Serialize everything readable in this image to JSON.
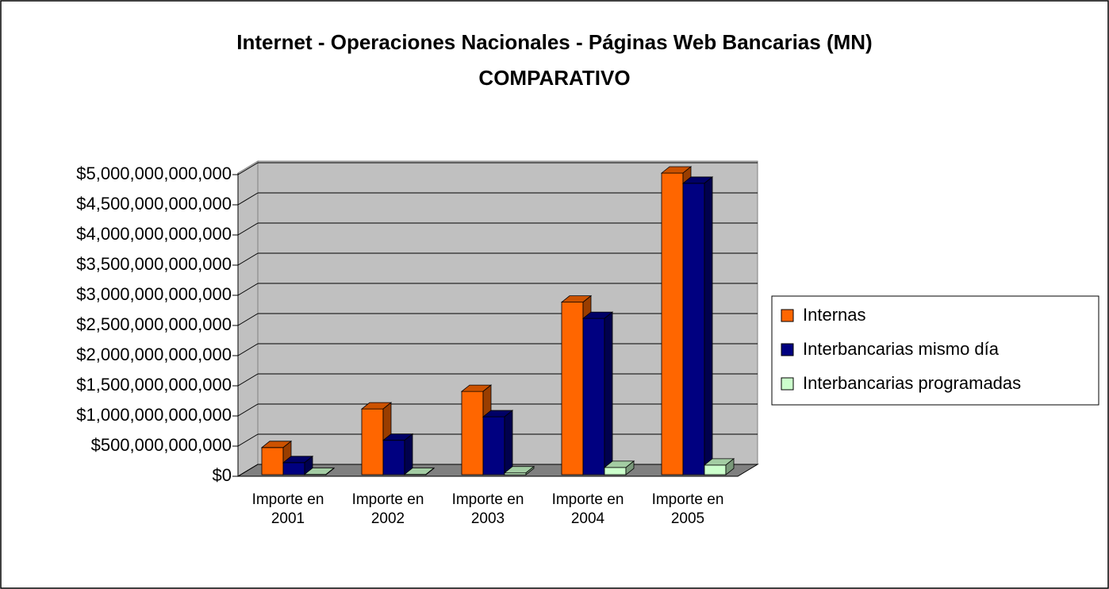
{
  "chart_data": {
    "type": "bar3d",
    "title": "Internet - Operaciones Nacionales - Páginas Web Bancarias (MN)",
    "subtitle": "COMPARATIVO",
    "categories": [
      "Importe en 2001",
      "Importe en 2002",
      "Importe en 2003",
      "Importe en 2004",
      "Importe en 2005"
    ],
    "series": [
      {
        "name": "Internas",
        "color": "#ff6600",
        "values": [
          450000000000,
          1090000000000,
          1380000000000,
          2860000000000,
          5000000000000
        ]
      },
      {
        "name": "Interbancarias mismo día",
        "color": "#000080",
        "values": [
          200000000000,
          570000000000,
          960000000000,
          2590000000000,
          4830000000000
        ]
      },
      {
        "name": "Interbancarias programadas",
        "color": "#ccffcc",
        "values": [
          5000000000,
          5000000000,
          30000000000,
          120000000000,
          160000000000
        ]
      }
    ],
    "ylim": [
      0,
      5000000000000
    ],
    "yticks": [
      {
        "value": 0,
        "label": "$0"
      },
      {
        "value": 500000000000,
        "label": "$500,000,000,000"
      },
      {
        "value": 1000000000000,
        "label": "$1,000,000,000,000"
      },
      {
        "value": 1500000000000,
        "label": "$1,500,000,000,000"
      },
      {
        "value": 2000000000000,
        "label": "$2,000,000,000,000"
      },
      {
        "value": 2500000000000,
        "label": "$2,500,000,000,000"
      },
      {
        "value": 3000000000000,
        "label": "$3,000,000,000,000"
      },
      {
        "value": 3500000000000,
        "label": "$3,500,000,000,000"
      },
      {
        "value": 4000000000000,
        "label": "$4,000,000,000,000"
      },
      {
        "value": 4500000000000,
        "label": "$4,500,000,000,000"
      },
      {
        "value": 5000000000000,
        "label": "$5,000,000,000,000"
      }
    ],
    "grid": true,
    "legend": "right"
  }
}
